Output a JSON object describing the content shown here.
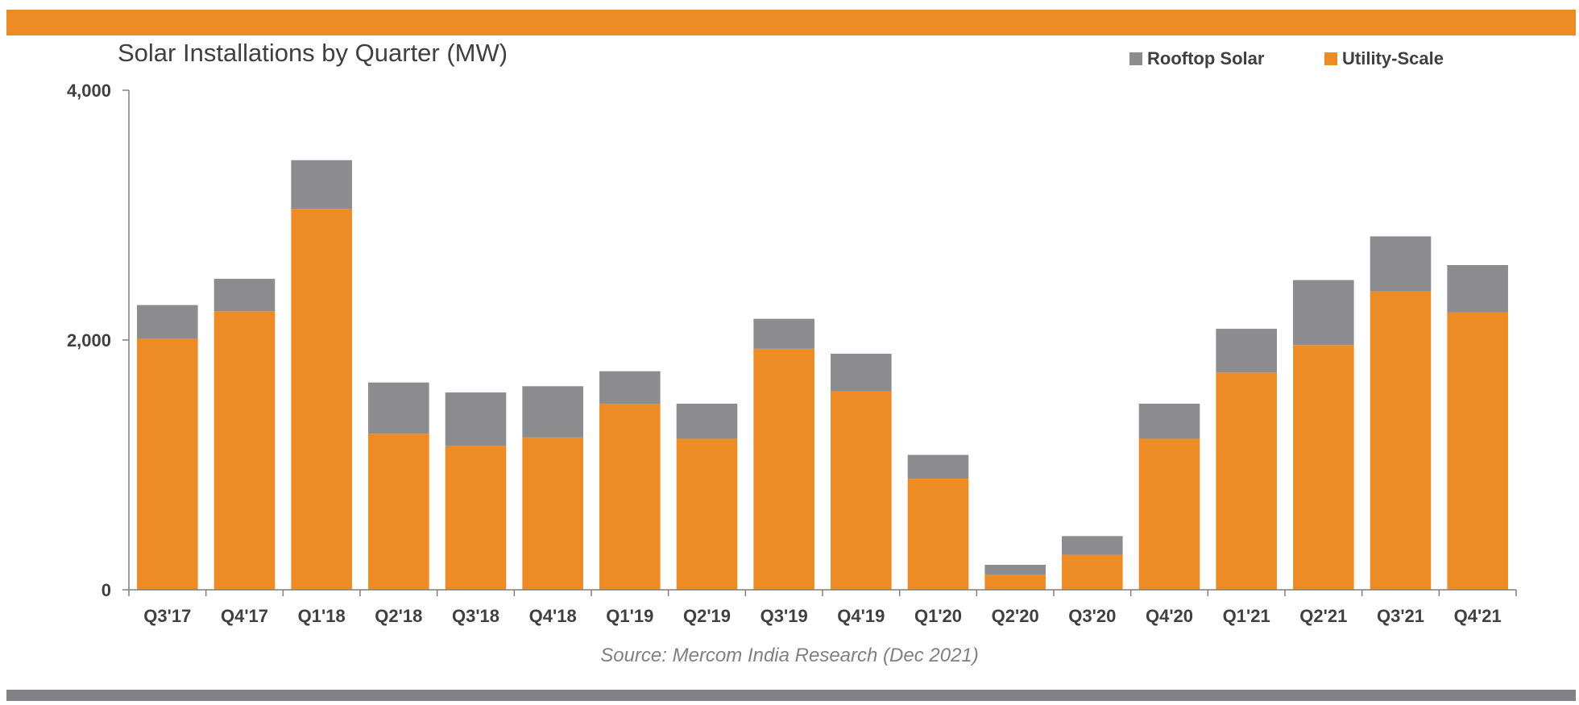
{
  "colors": {
    "top_band": "#ED8B24",
    "bottom_band": "#808285",
    "axis": "#7F7F7F"
  },
  "chart_data": {
    "type": "bar",
    "stacked": true,
    "title": "Solar Installations by Quarter (MW)",
    "xlabel": "",
    "ylabel": "",
    "ylim": [
      0,
      4000
    ],
    "yticks": [
      0,
      2000,
      4000
    ],
    "ytick_labels": [
      "0",
      "2,000",
      "4,000"
    ],
    "grid": false,
    "legend_position": "top-right",
    "categories": [
      "Q3'17",
      "Q4'17",
      "Q1'18",
      "Q2'18",
      "Q3'18",
      "Q4'18",
      "Q1'19",
      "Q2'19",
      "Q3'19",
      "Q4'19",
      "Q1'20",
      "Q2'20",
      "Q3'20",
      "Q4'20",
      "Q1'21",
      "Q2'21",
      "Q3'21",
      "Q4'21"
    ],
    "series": [
      {
        "name": "Utility-Scale",
        "color": "#ED8B24",
        "values": [
          2010,
          2230,
          3050,
          1250,
          1150,
          1220,
          1490,
          1210,
          1930,
          1590,
          890,
          120,
          280,
          1210,
          1740,
          1960,
          2390,
          2220
        ]
      },
      {
        "name": "Rooftop Solar",
        "color": "#8C8C90",
        "values": [
          270,
          260,
          390,
          410,
          430,
          410,
          260,
          280,
          240,
          300,
          190,
          80,
          150,
          280,
          350,
          520,
          440,
          380
        ]
      }
    ],
    "legend_order": [
      "Rooftop Solar",
      "Utility-Scale"
    ],
    "source": "Source: Mercom India Research (Dec 2021)"
  }
}
